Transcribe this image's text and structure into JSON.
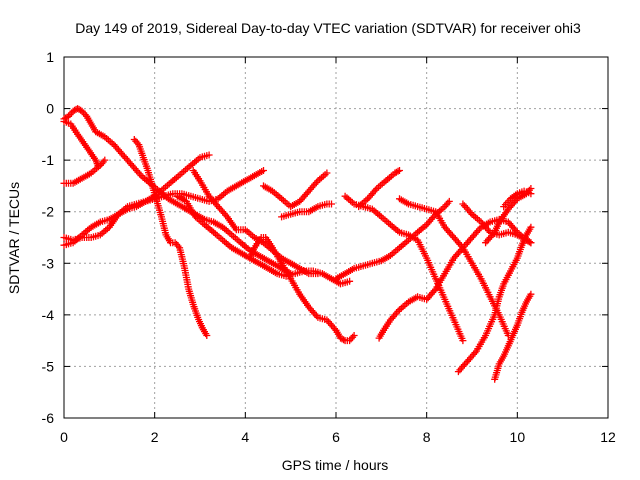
{
  "chart_data": {
    "type": "scatter",
    "title": "Day 149 of 2019, Sidereal Day-to-day VTEC variation (SDTVAR) for receiver ohi3",
    "xlabel": "GPS time / hours",
    "ylabel": "SDTVAR / TECUs",
    "xlim": [
      0,
      12
    ],
    "ylim": [
      -6,
      1
    ],
    "xticks": [
      "0",
      "2",
      "4",
      "6",
      "8",
      "10",
      "12"
    ],
    "yticks": [
      "-6",
      "-5",
      "-4",
      "-3",
      "-2",
      "-1",
      "0",
      "1"
    ],
    "grid": true,
    "marker": "plus",
    "color": "#ff0000",
    "tracks": [
      {
        "points": [
          [
            0.0,
            -0.2
          ],
          [
            0.1,
            -0.15
          ],
          [
            0.2,
            -0.05
          ],
          [
            0.3,
            0.0
          ],
          [
            0.4,
            -0.05
          ],
          [
            0.5,
            -0.15
          ],
          [
            0.6,
            -0.3
          ],
          [
            0.7,
            -0.45
          ],
          [
            0.9,
            -0.55
          ],
          [
            1.1,
            -0.7
          ],
          [
            1.3,
            -0.9
          ],
          [
            1.5,
            -1.1
          ],
          [
            1.7,
            -1.3
          ],
          [
            1.9,
            -1.45
          ],
          [
            2.1,
            -1.6
          ],
          [
            2.3,
            -1.75
          ],
          [
            2.5,
            -1.85
          ],
          [
            2.7,
            -1.95
          ],
          [
            2.9,
            -2.05
          ],
          [
            3.1,
            -2.15
          ],
          [
            3.3,
            -2.2
          ],
          [
            3.5,
            -2.3
          ],
          [
            3.7,
            -2.45
          ],
          [
            3.9,
            -2.6
          ],
          [
            4.1,
            -2.75
          ],
          [
            4.3,
            -2.85
          ],
          [
            4.5,
            -2.95
          ],
          [
            4.7,
            -3.05
          ],
          [
            4.9,
            -3.15
          ],
          [
            5.0,
            -3.2
          ]
        ]
      },
      {
        "points": [
          [
            0.0,
            -0.25
          ],
          [
            0.15,
            -0.3
          ],
          [
            0.3,
            -0.5
          ],
          [
            0.5,
            -0.75
          ],
          [
            0.7,
            -1.0
          ],
          [
            0.75,
            -1.1
          ]
        ]
      },
      {
        "points": [
          [
            0.0,
            -1.45
          ],
          [
            0.2,
            -1.45
          ],
          [
            0.4,
            -1.35
          ],
          [
            0.6,
            -1.25
          ],
          [
            0.8,
            -1.1
          ],
          [
            0.9,
            -1.0
          ]
        ]
      },
      {
        "points": [
          [
            0.0,
            -2.65
          ],
          [
            0.2,
            -2.6
          ],
          [
            0.4,
            -2.45
          ],
          [
            0.6,
            -2.3
          ],
          [
            0.8,
            -2.2
          ],
          [
            1.0,
            -2.15
          ],
          [
            1.2,
            -2.05
          ],
          [
            1.4,
            -1.95
          ],
          [
            1.6,
            -1.9
          ],
          [
            1.8,
            -1.8
          ],
          [
            2.0,
            -1.7
          ],
          [
            2.2,
            -1.55
          ],
          [
            2.4,
            -1.4
          ],
          [
            2.6,
            -1.25
          ],
          [
            2.8,
            -1.1
          ],
          [
            3.0,
            -0.95
          ],
          [
            3.2,
            -0.9
          ]
        ]
      },
      {
        "points": [
          [
            0.0,
            -2.5
          ],
          [
            0.2,
            -2.55
          ],
          [
            0.4,
            -2.5
          ],
          [
            0.6,
            -2.5
          ],
          [
            0.8,
            -2.45
          ],
          [
            1.0,
            -2.3
          ],
          [
            1.2,
            -2.05
          ],
          [
            1.4,
            -1.9
          ],
          [
            1.6,
            -1.85
          ],
          [
            1.8,
            -1.8
          ],
          [
            2.0,
            -1.75
          ],
          [
            2.2,
            -1.7
          ],
          [
            2.4,
            -1.65
          ],
          [
            2.6,
            -1.65
          ],
          [
            2.8,
            -1.7
          ],
          [
            3.0,
            -1.75
          ],
          [
            3.2,
            -1.8
          ],
          [
            3.4,
            -1.75
          ],
          [
            3.6,
            -1.6
          ],
          [
            3.8,
            -1.5
          ],
          [
            4.0,
            -1.4
          ],
          [
            4.2,
            -1.3
          ],
          [
            4.4,
            -1.2
          ]
        ]
      },
      {
        "points": [
          [
            1.55,
            -0.6
          ],
          [
            1.65,
            -0.7
          ],
          [
            1.75,
            -0.95
          ],
          [
            1.85,
            -1.2
          ],
          [
            1.95,
            -1.5
          ],
          [
            2.05,
            -1.8
          ],
          [
            2.15,
            -2.1
          ],
          [
            2.25,
            -2.45
          ],
          [
            2.35,
            -2.6
          ],
          [
            2.45,
            -2.6
          ],
          [
            2.55,
            -2.7
          ],
          [
            2.65,
            -3.05
          ],
          [
            2.75,
            -3.5
          ],
          [
            2.85,
            -3.8
          ],
          [
            2.95,
            -4.05
          ],
          [
            3.05,
            -4.25
          ],
          [
            3.15,
            -4.4
          ]
        ]
      },
      {
        "points": [
          [
            2.5,
            -1.7
          ],
          [
            2.7,
            -1.8
          ],
          [
            2.9,
            -2.1
          ],
          [
            3.1,
            -2.25
          ],
          [
            3.3,
            -2.4
          ],
          [
            3.5,
            -2.55
          ],
          [
            3.7,
            -2.7
          ],
          [
            3.9,
            -2.8
          ],
          [
            4.1,
            -2.9
          ],
          [
            4.3,
            -3.0
          ],
          [
            4.5,
            -3.1
          ],
          [
            4.7,
            -3.2
          ],
          [
            4.9,
            -3.25
          ],
          [
            5.1,
            -3.2
          ],
          [
            5.3,
            -3.15
          ],
          [
            5.5,
            -3.15
          ],
          [
            5.7,
            -3.2
          ],
          [
            5.9,
            -3.3
          ],
          [
            6.1,
            -3.4
          ],
          [
            6.3,
            -3.35
          ]
        ]
      },
      {
        "points": [
          [
            2.85,
            -1.2
          ],
          [
            3.0,
            -1.4
          ],
          [
            3.2,
            -1.7
          ],
          [
            3.4,
            -1.9
          ],
          [
            3.6,
            -2.1
          ],
          [
            3.8,
            -2.35
          ],
          [
            4.0,
            -2.35
          ],
          [
            4.2,
            -2.5
          ],
          [
            4.4,
            -2.6
          ],
          [
            4.6,
            -2.75
          ],
          [
            4.8,
            -2.9
          ],
          [
            5.0,
            -3.0
          ],
          [
            5.2,
            -3.1
          ],
          [
            5.4,
            -3.2
          ],
          [
            5.6,
            -3.2
          ]
        ]
      },
      {
        "points": [
          [
            4.1,
            -2.9
          ],
          [
            4.2,
            -2.7
          ],
          [
            4.35,
            -2.5
          ],
          [
            4.45,
            -2.5
          ],
          [
            4.6,
            -2.7
          ],
          [
            4.8,
            -3.0
          ],
          [
            5.0,
            -3.3
          ],
          [
            5.2,
            -3.6
          ],
          [
            5.4,
            -3.85
          ],
          [
            5.6,
            -4.05
          ],
          [
            5.8,
            -4.1
          ],
          [
            6.0,
            -4.3
          ],
          [
            6.1,
            -4.45
          ],
          [
            6.2,
            -4.5
          ],
          [
            6.3,
            -4.5
          ],
          [
            6.4,
            -4.4
          ]
        ]
      },
      {
        "points": [
          [
            4.4,
            -1.5
          ],
          [
            4.6,
            -1.6
          ],
          [
            4.8,
            -1.75
          ],
          [
            5.0,
            -1.9
          ],
          [
            5.2,
            -1.8
          ],
          [
            5.4,
            -1.6
          ],
          [
            5.6,
            -1.4
          ],
          [
            5.8,
            -1.25
          ]
        ]
      },
      {
        "points": [
          [
            4.8,
            -2.1
          ],
          [
            5.0,
            -2.05
          ],
          [
            5.2,
            -2.0
          ],
          [
            5.4,
            -2.0
          ],
          [
            5.6,
            -1.9
          ],
          [
            5.8,
            -1.85
          ],
          [
            5.9,
            -1.85
          ]
        ]
      },
      {
        "points": [
          [
            6.0,
            -3.3
          ],
          [
            6.2,
            -3.2
          ],
          [
            6.4,
            -3.1
          ],
          [
            6.6,
            -3.05
          ],
          [
            6.8,
            -3.0
          ],
          [
            7.0,
            -2.95
          ],
          [
            7.2,
            -2.85
          ],
          [
            7.4,
            -2.7
          ],
          [
            7.6,
            -2.55
          ],
          [
            7.8,
            -2.4
          ],
          [
            8.0,
            -2.25
          ],
          [
            8.2,
            -2.05
          ],
          [
            8.4,
            -1.9
          ],
          [
            8.5,
            -1.8
          ]
        ]
      },
      {
        "points": [
          [
            6.2,
            -1.7
          ],
          [
            6.4,
            -1.85
          ],
          [
            6.6,
            -1.9
          ],
          [
            6.8,
            -1.95
          ],
          [
            7.0,
            -2.1
          ],
          [
            7.2,
            -2.25
          ],
          [
            7.4,
            -2.4
          ],
          [
            7.6,
            -2.45
          ],
          [
            7.8,
            -2.55
          ],
          [
            8.0,
            -2.9
          ],
          [
            8.2,
            -3.3
          ],
          [
            8.4,
            -3.7
          ],
          [
            8.6,
            -4.1
          ],
          [
            8.8,
            -4.5
          ]
        ]
      },
      {
        "points": [
          [
            6.5,
            -1.9
          ],
          [
            6.7,
            -1.75
          ],
          [
            6.9,
            -1.55
          ],
          [
            7.1,
            -1.4
          ],
          [
            7.3,
            -1.25
          ],
          [
            7.4,
            -1.2
          ]
        ]
      },
      {
        "points": [
          [
            6.95,
            -4.45
          ],
          [
            7.05,
            -4.3
          ],
          [
            7.2,
            -4.1
          ],
          [
            7.4,
            -3.9
          ],
          [
            7.6,
            -3.75
          ],
          [
            7.8,
            -3.65
          ],
          [
            8.0,
            -3.7
          ],
          [
            8.2,
            -3.5
          ],
          [
            8.4,
            -3.2
          ],
          [
            8.6,
            -2.9
          ],
          [
            8.8,
            -2.7
          ],
          [
            9.0,
            -2.5
          ],
          [
            9.2,
            -2.3
          ],
          [
            9.4,
            -2.2
          ],
          [
            9.6,
            -2.15
          ],
          [
            9.8,
            -2.2
          ],
          [
            10.0,
            -2.4
          ],
          [
            10.2,
            -2.55
          ],
          [
            10.3,
            -2.6
          ]
        ]
      },
      {
        "points": [
          [
            7.4,
            -1.75
          ],
          [
            7.6,
            -1.85
          ],
          [
            7.8,
            -1.9
          ],
          [
            8.0,
            -1.95
          ],
          [
            8.2,
            -2.0
          ],
          [
            8.4,
            -2.3
          ],
          [
            8.6,
            -2.5
          ],
          [
            8.8,
            -2.7
          ],
          [
            9.0,
            -3.0
          ],
          [
            9.2,
            -3.3
          ],
          [
            9.4,
            -3.65
          ],
          [
            9.6,
            -4.0
          ],
          [
            9.8,
            -4.4
          ]
        ]
      },
      {
        "points": [
          [
            8.7,
            -5.1
          ],
          [
            8.9,
            -4.9
          ],
          [
            9.1,
            -4.7
          ],
          [
            9.3,
            -4.4
          ],
          [
            9.5,
            -4.0
          ],
          [
            9.6,
            -3.65
          ],
          [
            9.7,
            -3.4
          ],
          [
            9.85,
            -3.15
          ],
          [
            10.0,
            -2.9
          ],
          [
            10.1,
            -2.65
          ],
          [
            10.2,
            -2.45
          ],
          [
            10.3,
            -2.3
          ]
        ]
      },
      {
        "points": [
          [
            8.8,
            -1.85
          ],
          [
            9.0,
            -2.05
          ],
          [
            9.2,
            -2.2
          ],
          [
            9.4,
            -2.4
          ],
          [
            9.6,
            -2.45
          ],
          [
            9.8,
            -2.4
          ],
          [
            10.0,
            -2.45
          ],
          [
            10.2,
            -2.55
          ],
          [
            10.3,
            -2.6
          ]
        ]
      },
      {
        "points": [
          [
            9.3,
            -2.6
          ],
          [
            9.5,
            -2.4
          ],
          [
            9.6,
            -2.2
          ],
          [
            9.8,
            -1.95
          ],
          [
            10.0,
            -1.75
          ],
          [
            10.2,
            -1.65
          ],
          [
            10.3,
            -1.55
          ]
        ]
      },
      {
        "points": [
          [
            9.7,
            -1.9
          ],
          [
            9.85,
            -1.75
          ],
          [
            10.0,
            -1.65
          ],
          [
            10.15,
            -1.6
          ],
          [
            10.3,
            -1.65
          ]
        ]
      },
      {
        "points": [
          [
            9.5,
            -5.25
          ],
          [
            9.6,
            -4.95
          ],
          [
            9.7,
            -4.8
          ],
          [
            9.8,
            -4.6
          ],
          [
            9.9,
            -4.4
          ],
          [
            10.0,
            -4.2
          ],
          [
            10.1,
            -3.95
          ],
          [
            10.2,
            -3.75
          ],
          [
            10.3,
            -3.6
          ]
        ]
      }
    ]
  }
}
